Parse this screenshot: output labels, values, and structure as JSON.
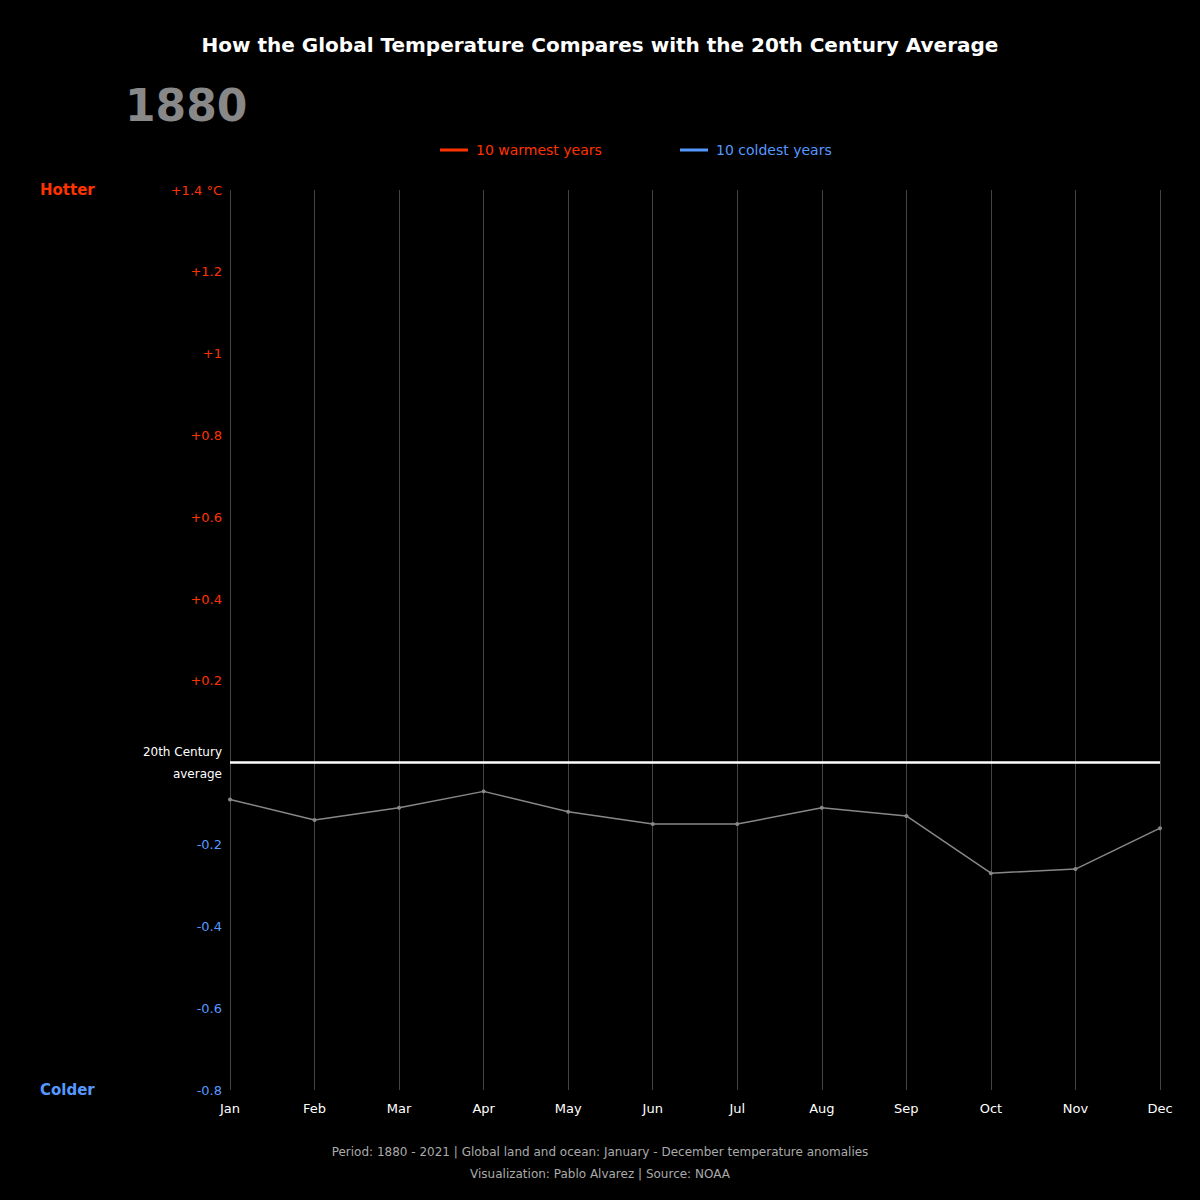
{
  "chart_data": {
    "type": "line",
    "title": "How the Global Temperature Compares with the 20th Century Average",
    "subtitle": "1880",
    "background_color": "#000000",
    "title_color": "#ffffff",
    "subtitle_color": "#888888",
    "categories": [
      "Jan",
      "Feb",
      "Mar",
      "Apr",
      "May",
      "Jun",
      "Jul",
      "Aug",
      "Sep",
      "Oct",
      "Nov",
      "Dec"
    ],
    "values": [
      -0.09,
      -0.14,
      -0.11,
      -0.07,
      -0.12,
      -0.15,
      -0.15,
      -0.11,
      -0.13,
      -0.27,
      -0.26,
      -0.16
    ],
    "color": "#888888",
    "ylim": [
      -0.8,
      1.4
    ],
    "yticks": [
      {
        "value": 1.4,
        "label": "+1.4 °C",
        "color": "#ff3300"
      },
      {
        "value": 1.2,
        "label": "+1.2",
        "color": "#ff3300"
      },
      {
        "value": 1.0,
        "label": "+1",
        "color": "#ff3300"
      },
      {
        "value": 0.8,
        "label": "+0.8",
        "color": "#ff3300"
      },
      {
        "value": 0.6,
        "label": "+0.6",
        "color": "#ff3300"
      },
      {
        "value": 0.4,
        "label": "+0.4",
        "color": "#ff3300"
      },
      {
        "value": 0.2,
        "label": "+0.2",
        "color": "#ff3300"
      },
      {
        "value": -0.2,
        "label": "-0.2",
        "color": "#5599ff"
      },
      {
        "value": -0.4,
        "label": "-0.4",
        "color": "#5599ff"
      },
      {
        "value": -0.6,
        "label": "-0.6",
        "color": "#5599ff"
      },
      {
        "value": -0.8,
        "label": "-0.8",
        "color": "#5599ff"
      }
    ],
    "tick_label_color": "#ffffff",
    "grid": "x",
    "grid_color": "#555555",
    "reference_lines": [
      {
        "y": 0,
        "color": "#ffffff",
        "labels": [
          "20th Century",
          "average"
        ]
      }
    ],
    "annotations": [
      {
        "text": "Hotter",
        "y": 1.4,
        "color": "#ff3300"
      },
      {
        "text": "Colder",
        "y": -0.8,
        "color": "#5599ff"
      }
    ],
    "legend_entries": [
      {
        "text": "10 warmest years",
        "color": "#ff3300"
      },
      {
        "text": "10 coldest years",
        "color": "#5599ff"
      }
    ],
    "footnotes": [
      "Period: 1880 - 2021 | Global land and ocean: January - December temperature anomalies",
      "Visualization: Pablo Alvarez | Source: NOAA"
    ],
    "footnote_color": "#aaaaaa"
  }
}
